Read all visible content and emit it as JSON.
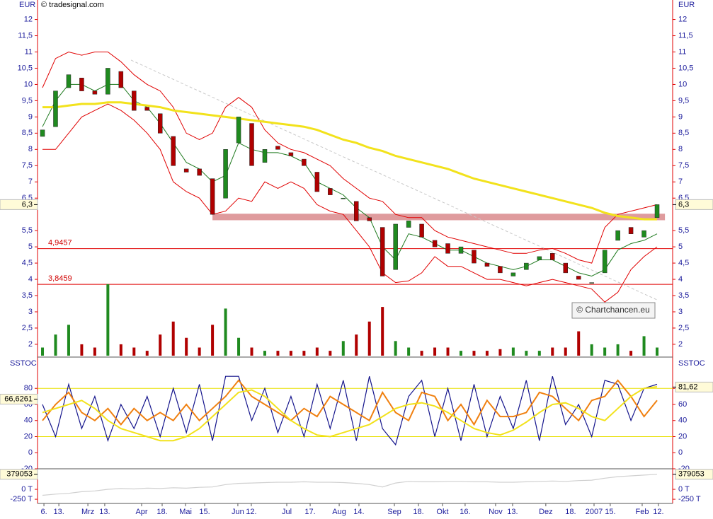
{
  "chart_data": [
    {
      "type": "candlestick",
      "attribution": "© tradesignal.com",
      "watermark": "© Chartchancen.eu",
      "ylabel": "EUR",
      "ylim": [
        1.65,
        12.6
      ],
      "yticks": [
        12,
        {
          "value": 11.5,
          "label": "11,5"
        },
        11,
        {
          "value": 10.5,
          "label": "10,5"
        },
        10,
        {
          "value": 9.5,
          "label": "9,5"
        },
        9,
        {
          "value": 8.5,
          "label": "8,5"
        },
        8,
        {
          "value": 7.5,
          "label": "7,5"
        },
        7,
        {
          "value": 6.5,
          "label": "6,5"
        },
        {
          "value": 5.5,
          "label": "5,5"
        },
        5,
        {
          "value": 4.5,
          "label": "4,5"
        },
        4,
        {
          "value": 3.5,
          "label": "3,5"
        },
        3,
        {
          "value": 2.5,
          "label": "2,5"
        },
        2
      ],
      "last_price": {
        "value": 6.3,
        "label": "6,3"
      },
      "up_color": "#1f8a1f",
      "down_color": "#b00000",
      "open": [
        8.4,
        8.7,
        9.9,
        10.2,
        9.8,
        9.7,
        10.4,
        9.8,
        9.3,
        9.1,
        8.4,
        7.4,
        7.4,
        7.1,
        6.5,
        8.2,
        8.8,
        7.6,
        8.1,
        7.9,
        7.7,
        7.3,
        6.8,
        6.5,
        6.4,
        5.9,
        5.6,
        4.3,
        5.6,
        5.7,
        5.2,
        5.1,
        4.8,
        4.9,
        4.5,
        4.4,
        4.1,
        4.3,
        4.6,
        4.8,
        4.5,
        4.1,
        3.9,
        4.2,
        5.2,
        5.6,
        5.3,
        5.9
      ],
      "close": [
        8.6,
        9.8,
        10.3,
        9.8,
        9.7,
        10.5,
        9.9,
        9.2,
        9.2,
        8.5,
        7.5,
        7.3,
        7.2,
        6.0,
        8.0,
        9.0,
        7.5,
        8.0,
        8.0,
        7.8,
        7.5,
        6.7,
        6.6,
        6.5,
        5.8,
        5.8,
        4.1,
        5.7,
        5.8,
        5.3,
        5.0,
        4.8,
        5.0,
        4.5,
        4.4,
        4.2,
        4.2,
        4.5,
        4.7,
        4.6,
        4.2,
        4.0,
        3.9,
        4.9,
        5.5,
        5.4,
        5.5,
        6.3
      ],
      "volume": [
        1.9,
        2.3,
        2.6,
        2.0,
        1.9,
        3.85,
        2.0,
        1.9,
        1.8,
        2.3,
        2.7,
        2.2,
        1.9,
        2.6,
        3.1,
        2.2,
        1.9,
        1.8,
        1.8,
        1.8,
        1.8,
        1.9,
        1.8,
        2.1,
        2.3,
        2.7,
        3.15,
        2.1,
        1.9,
        1.8,
        1.9,
        1.9,
        1.8,
        1.8,
        1.8,
        1.85,
        1.9,
        1.8,
        1.8,
        1.9,
        1.9,
        2.4,
        2.0,
        1.9,
        2.0,
        1.8,
        2.25,
        1.9
      ],
      "sma": {
        "color": "#f2e21c",
        "values": [
          9.3,
          9.3,
          9.35,
          9.4,
          9.4,
          9.45,
          9.45,
          9.4,
          9.35,
          9.3,
          9.2,
          9.15,
          9.1,
          9.05,
          9.0,
          8.95,
          8.9,
          8.85,
          8.8,
          8.75,
          8.7,
          8.6,
          8.45,
          8.3,
          8.2,
          8.05,
          7.95,
          7.8,
          7.7,
          7.6,
          7.5,
          7.4,
          7.25,
          7.1,
          7.0,
          6.9,
          6.8,
          6.7,
          6.6,
          6.5,
          6.4,
          6.3,
          6.2,
          6.05,
          5.95,
          5.9,
          5.85,
          5.85
        ]
      },
      "upper_band": {
        "color": "#e00000",
        "values": [
          9.9,
          10.8,
          11.0,
          10.9,
          11.0,
          11.0,
          10.7,
          10.3,
          10.0,
          9.8,
          9.3,
          8.5,
          8.3,
          8.5,
          9.3,
          9.6,
          9.3,
          8.6,
          8.2,
          8.0,
          7.9,
          7.7,
          7.5,
          7.1,
          6.8,
          6.5,
          6.4,
          6.0,
          5.9,
          5.9,
          5.5,
          5.3,
          5.2,
          5.1,
          5.0,
          4.9,
          4.8,
          4.8,
          4.9,
          4.95,
          4.8,
          4.6,
          4.5,
          5.6,
          6.0,
          6.1,
          6.2,
          6.3
        ]
      },
      "lower_band": {
        "color": "#e00000",
        "values": [
          8.0,
          8.0,
          8.5,
          9.0,
          9.2,
          9.4,
          9.2,
          8.9,
          8.5,
          8.0,
          7.0,
          6.7,
          6.5,
          6.0,
          6.1,
          6.5,
          6.4,
          7.0,
          6.8,
          7.0,
          6.8,
          6.3,
          6.1,
          6.0,
          5.5,
          5.0,
          4.2,
          3.9,
          3.95,
          4.2,
          4.7,
          4.4,
          4.4,
          4.2,
          4.0,
          4.0,
          3.9,
          3.8,
          3.9,
          4.0,
          3.9,
          3.8,
          3.7,
          3.3,
          3.6,
          4.3,
          4.7,
          5.0
        ]
      },
      "envelope": {
        "color": "#1f7a1f",
        "values": [
          8.7,
          9.5,
          10.0,
          10.0,
          9.8,
          10.0,
          10.0,
          9.5,
          9.3,
          8.8,
          8.2,
          7.6,
          7.4,
          7.0,
          7.2,
          8.2,
          8.0,
          7.9,
          7.9,
          7.8,
          7.6,
          7.0,
          6.8,
          6.6,
          6.2,
          5.9,
          5.0,
          4.6,
          5.4,
          5.3,
          5.1,
          4.9,
          4.9,
          4.7,
          4.5,
          4.4,
          4.3,
          4.4,
          4.6,
          4.6,
          4.4,
          4.2,
          4.1,
          4.3,
          4.9,
          5.1,
          5.2,
          5.4
        ]
      },
      "levels": [
        {
          "value": 4.9457,
          "label": "4,9457"
        },
        {
          "value": 3.8459,
          "label": "3,8459"
        }
      ],
      "level_color": "#e00000",
      "resistance": {
        "x": [
          13,
          47.6
        ],
        "y": [
          5.82,
          6.02
        ],
        "color": "#d9898c"
      },
      "trendline": {
        "x": [
          6.77,
          47.1
        ],
        "y": [
          10.75,
          3.35
        ],
        "color": "#c8c8c8"
      }
    },
    {
      "type": "line",
      "title": "SSTOC",
      "ylim": [
        -20,
        118
      ],
      "yticks": [
        80,
        60,
        40,
        20,
        0,
        -20
      ],
      "levels": [
        80,
        20
      ],
      "level_color": "#e8e000",
      "marker_left": {
        "value": 66.6261,
        "label": "66,6261"
      },
      "marker_right": {
        "value": 81.62,
        "label": "81,62"
      },
      "series": [
        {
          "color": "#14148c",
          "values": [
            60,
            20,
            85,
            30,
            70,
            15,
            60,
            30,
            70,
            20,
            80,
            25,
            85,
            15,
            95,
            95,
            40,
            80,
            25,
            70,
            20,
            85,
            30,
            90,
            15,
            95,
            30,
            10,
            70,
            90,
            20,
            80,
            15,
            85,
            20,
            70,
            30,
            90,
            15,
            95,
            35,
            60,
            20,
            90,
            85,
            40,
            80,
            85
          ]
        },
        {
          "color": "#f08010",
          "values": [
            40,
            60,
            75,
            50,
            40,
            55,
            35,
            55,
            40,
            50,
            40,
            60,
            40,
            55,
            70,
            90,
            70,
            60,
            50,
            40,
            55,
            45,
            70,
            60,
            50,
            40,
            75,
            50,
            40,
            75,
            70,
            40,
            60,
            35,
            65,
            45,
            45,
            50,
            75,
            70,
            55,
            40,
            65,
            70,
            90,
            70,
            45,
            65
          ]
        },
        {
          "color": "#f2e21c",
          "values": [
            50,
            55,
            60,
            65,
            55,
            40,
            30,
            25,
            20,
            15,
            15,
            20,
            30,
            45,
            60,
            75,
            78,
            70,
            55,
            40,
            30,
            22,
            20,
            25,
            30,
            35,
            45,
            55,
            60,
            62,
            58,
            50,
            40,
            30,
            25,
            22,
            28,
            38,
            50,
            60,
            62,
            55,
            45,
            40,
            55,
            70,
            80,
            82
          ]
        }
      ]
    },
    {
      "type": "line",
      "ylim": [
        -320000,
        500000
      ],
      "yticks": [
        {
          "value": 0,
          "label": "0 T"
        },
        {
          "value": -250000,
          "label": "-250 T"
        }
      ],
      "marker": 379053,
      "series": [
        {
          "color": "#d0d0d0",
          "values": [
            -150000,
            -120000,
            -100000,
            -60000,
            -40000,
            0,
            20000,
            10000,
            30000,
            20000,
            40000,
            30000,
            50000,
            60000,
            120000,
            150000,
            160000,
            170000,
            180000,
            180000,
            190000,
            180000,
            180000,
            170000,
            150000,
            120000,
            60000,
            160000,
            200000,
            190000,
            190000,
            200000,
            200000,
            190000,
            190000,
            180000,
            180000,
            190000,
            200000,
            210000,
            200000,
            220000,
            230000,
            280000,
            320000,
            340000,
            360000,
            379053
          ]
        }
      ],
      "xlim": [
        -0.38,
        48.19
      ],
      "xticks": [
        {
          "value": 0.11,
          "label": "6."
        },
        {
          "value": 1.25,
          "label": "13."
        },
        {
          "value": 3.47,
          "label": "Mrz"
        },
        {
          "value": 4.76,
          "label": "13."
        },
        {
          "value": 7.58,
          "label": "Apr"
        },
        {
          "value": 9.15,
          "label": "18."
        },
        {
          "value": 10.94,
          "label": "Mai"
        },
        {
          "value": 12.4,
          "label": "15."
        },
        {
          "value": 14.94,
          "label": "Jun"
        },
        {
          "value": 15.97,
          "label": "12."
        },
        {
          "value": 18.68,
          "label": "Jul"
        },
        {
          "value": 20.47,
          "label": "17."
        },
        {
          "value": 22.69,
          "label": "Aug"
        },
        {
          "value": 24.2,
          "label": "14."
        },
        {
          "value": 26.91,
          "label": "Sep"
        },
        {
          "value": 28.75,
          "label": "18."
        },
        {
          "value": 30.59,
          "label": "Okt"
        },
        {
          "value": 32.32,
          "label": "16."
        },
        {
          "value": 34.65,
          "label": "Nov"
        },
        {
          "value": 35.95,
          "label": "13."
        },
        {
          "value": 38.49,
          "label": "Dez"
        },
        {
          "value": 40.39,
          "label": "18."
        },
        {
          "value": 42.18,
          "label": "2007"
        },
        {
          "value": 43.42,
          "label": "15."
        },
        {
          "value": 45.86,
          "label": "Feb"
        },
        {
          "value": 47.1,
          "label": "12."
        }
      ]
    }
  ]
}
